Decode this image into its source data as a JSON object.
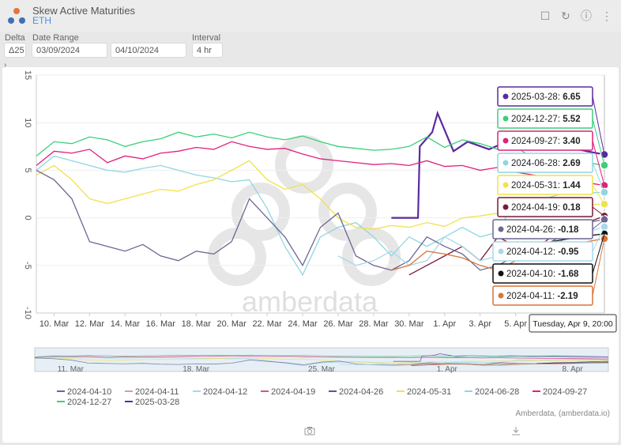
{
  "app": {
    "title": "Skew Active Maturities",
    "subtitle": "ETH"
  },
  "controls": {
    "delta_label": "Delta",
    "delta_value": "Δ25",
    "date_range_label": "Date Range",
    "start_date": "03/09/2024",
    "end_date": "04/10/2024",
    "interval_label": "Interval",
    "interval_value": "4 hr"
  },
  "footer": {
    "credit": "Amberdata, (amberdata.io)"
  },
  "tooltip_header": "Tuesday, Apr 9, 20:00",
  "watermark": "amberdata",
  "chart_data": {
    "type": "line",
    "title": "Skew Active Maturities",
    "ylim": [
      -10,
      15
    ],
    "yticks": [
      -10,
      -5,
      0,
      5,
      10,
      15
    ],
    "xticks": [
      "10. Mar",
      "12. Mar",
      "14. Mar",
      "16. Mar",
      "18. Mar",
      "20. Mar",
      "22. Mar",
      "24. Mar",
      "26. Mar",
      "28. Mar",
      "30. Mar",
      "1. Apr",
      "3. Apr",
      "5. Apr"
    ],
    "xrange_days": [
      0,
      32
    ],
    "navigator_ticks": [
      "11. Mar",
      "18. Mar",
      "25. Mar",
      "1. Apr",
      "8. Apr"
    ],
    "tooltip_x_day": 32,
    "series": [
      {
        "name": "2025-03-28",
        "color": "#5b2a9e",
        "tooltip": "6.65",
        "days": [
          20,
          21.5,
          21.6,
          22.3,
          22.6,
          23.5,
          24.3,
          25.5,
          26.5,
          28,
          29,
          30,
          31,
          32
        ],
        "values": [
          0,
          0,
          7.5,
          9,
          11,
          7,
          8,
          7.2,
          8,
          7.5,
          7.8,
          7.4,
          7,
          6.65
        ]
      },
      {
        "name": "2024-12-27",
        "color": "#3ad07a",
        "tooltip": "5.52",
        "days": [
          0,
          1,
          2,
          3,
          4,
          5,
          6,
          7,
          8,
          9,
          10,
          11,
          12,
          13,
          14,
          15,
          16,
          17,
          18,
          19,
          20,
          21,
          22,
          23,
          24,
          25,
          26,
          27,
          28,
          29,
          30,
          31,
          32
        ],
        "values": [
          6.5,
          8,
          7.8,
          8.5,
          8.2,
          7.5,
          8,
          8.3,
          9,
          8.5,
          8.8,
          8.4,
          9,
          8.5,
          8.2,
          8.6,
          8,
          7.5,
          7.3,
          7.1,
          7.2,
          7.5,
          8.5,
          7.4,
          8.2,
          7.8,
          7.2,
          7.5,
          6.2,
          6.3,
          6,
          5.8,
          5.52
        ]
      },
      {
        "name": "2024-09-27",
        "color": "#e0217a",
        "tooltip": "3.40",
        "days": [
          0,
          1,
          2,
          3,
          4,
          5,
          6,
          7,
          8,
          9,
          10,
          11,
          12,
          13,
          14,
          15,
          16,
          17,
          18,
          19,
          20,
          21,
          22,
          23,
          24,
          25,
          26,
          27,
          28,
          29,
          30,
          31,
          32
        ],
        "values": [
          5.5,
          7,
          6.8,
          7.2,
          5.8,
          6.5,
          6.2,
          6.8,
          7,
          7.4,
          7.2,
          8,
          7.5,
          7.2,
          7.3,
          6.7,
          6.2,
          6,
          5.8,
          5.6,
          5.7,
          5.5,
          6,
          5.4,
          5.5,
          5,
          5.3,
          4.8,
          4.5,
          4.2,
          4,
          3.7,
          3.4
        ]
      },
      {
        "name": "2024-06-28",
        "color": "#8fd6e0",
        "tooltip": "2.69",
        "days": [
          0,
          1,
          2,
          3,
          4,
          5,
          6,
          7,
          8,
          9,
          10,
          11,
          12,
          13,
          14,
          15,
          16,
          17,
          18,
          19,
          20,
          21,
          22,
          23,
          24,
          25,
          26,
          27,
          28,
          29,
          30,
          31,
          32
        ],
        "values": [
          5,
          6.5,
          6,
          5.5,
          5,
          4.8,
          5.2,
          5.5,
          5,
          4.5,
          4.2,
          3.8,
          4,
          1,
          -3,
          -6,
          -2,
          -1,
          -0.5,
          -2,
          -4,
          -2,
          -3,
          -2,
          -1,
          -2,
          -1.5,
          2,
          1.5,
          2.2,
          2.8,
          2.6,
          2.69
        ]
      },
      {
        "name": "2024-05-31",
        "color": "#f0e24a",
        "tooltip": "1.44",
        "days": [
          0,
          1,
          2,
          3,
          4,
          5,
          6,
          7,
          8,
          9,
          10,
          11,
          12,
          13,
          14,
          15,
          16,
          17,
          18,
          19,
          20,
          21,
          22,
          23,
          24,
          25,
          26,
          27,
          28,
          29,
          30,
          31,
          32
        ],
        "values": [
          4.5,
          5.5,
          4,
          2,
          1.5,
          2,
          2.5,
          3,
          2.8,
          3.5,
          4,
          5,
          6,
          4,
          3,
          3.5,
          2,
          0,
          -1,
          -1.2,
          -0.8,
          -1,
          -0.5,
          -0.9,
          0,
          0.2,
          0.5,
          0.3,
          1,
          1.2,
          1.3,
          1.4,
          1.44
        ]
      },
      {
        "name": "2024-04-19",
        "color": "#7a1a3a",
        "tooltip": "0.18",
        "days": [
          21,
          22,
          23,
          24,
          25,
          26,
          27,
          28,
          29,
          30,
          31,
          32
        ],
        "values": [
          -6,
          -5,
          -4,
          -3,
          -4.5,
          -2,
          -3,
          -3.5,
          -2,
          -1.5,
          -0.5,
          0.18
        ]
      },
      {
        "name": "2024-04-26",
        "color": "#6b6790",
        "tooltip": "-0.18",
        "days": [
          0,
          1,
          2,
          3,
          4,
          5,
          6,
          7,
          8,
          9,
          10,
          11,
          12,
          13,
          14,
          15,
          16,
          17,
          18,
          19,
          20,
          21,
          22,
          23,
          24,
          25,
          26,
          27,
          28,
          29,
          30,
          31,
          32
        ],
        "values": [
          5,
          4,
          2,
          -2.5,
          -3,
          -3.5,
          -2.8,
          -4,
          -4.5,
          -3.5,
          -3.8,
          -2.5,
          2,
          0,
          -2,
          -5,
          -1,
          0.5,
          -4,
          -5,
          -5.5,
          -4.5,
          -2,
          -3,
          -3.8,
          -5.5,
          -5,
          -4,
          -3.5,
          -2.5,
          -1.5,
          -0.5,
          -0.18
        ]
      },
      {
        "name": "2024-04-12",
        "color": "#a8d8ea",
        "tooltip": "-0.95",
        "days": [
          17,
          18,
          19,
          20,
          21,
          22,
          23,
          24,
          25,
          26,
          27,
          28,
          29,
          30,
          31,
          32
        ],
        "values": [
          -4,
          -5,
          -4.5,
          -3.5,
          -5,
          -4.5,
          -2,
          -3,
          -4.5,
          -4,
          -3.5,
          -4,
          -3,
          -2,
          -1.5,
          -0.95
        ]
      },
      {
        "name": "2024-04-10",
        "color": "#111111",
        "tooltip": "-1.68",
        "days": [
          28,
          29,
          30,
          31,
          32
        ],
        "values": [
          -3,
          -2.5,
          -2.2,
          -1.9,
          -1.68
        ]
      },
      {
        "name": "2024-04-11",
        "color": "#d8753a",
        "tooltip": "-2.19",
        "days": [
          20,
          21,
          22,
          23,
          24,
          25,
          26,
          27,
          28,
          29,
          30,
          31,
          32
        ],
        "values": [
          -5.5,
          -5,
          -3.5,
          -3.8,
          -4.2,
          -5,
          -5.5,
          -4.5,
          -3.5,
          -4,
          -3,
          -2.5,
          -2.19
        ]
      }
    ],
    "legend": [
      "2024-04-10",
      "2024-04-11",
      "2024-04-12",
      "2024-04-19",
      "2024-04-26",
      "2024-05-31",
      "2024-06-28",
      "2024-09-27",
      "2024-12-27",
      "2025-03-28"
    ],
    "legend_colors": [
      "#6b6790",
      "#c9a0b0",
      "#a8d8ea",
      "#d55a7a",
      "#5a5a80",
      "#f0e24a",
      "#8fd6e0",
      "#e0217a",
      "#3ad07a",
      "#5b2a9e"
    ]
  }
}
